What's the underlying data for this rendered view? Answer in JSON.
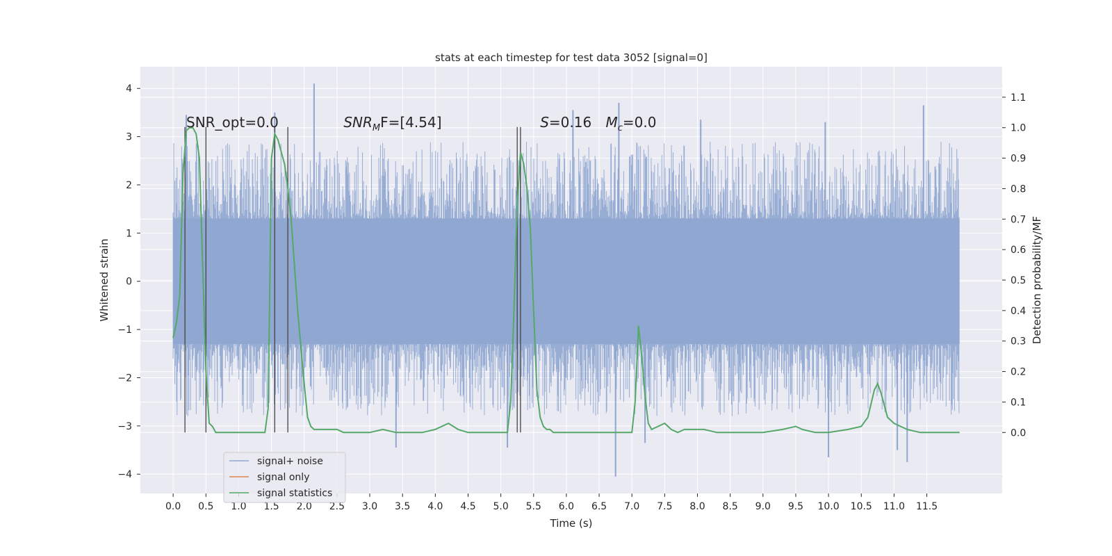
{
  "chart_data": {
    "type": "line",
    "title": "stats at each timestep for test data 3052 [signal=0]",
    "xlabel": "Time (s)",
    "ylabel": "Whitened strain",
    "ylabel_right": "Detection probability/MF",
    "xlim": [
      -0.5,
      12.65
    ],
    "ylim": [
      -4.4,
      4.45
    ],
    "ylim_right": [
      -0.2,
      1.2
    ],
    "x_ticks": [
      "0.0",
      "0.5",
      "1.0",
      "1.5",
      "2.0",
      "2.5",
      "3.0",
      "3.5",
      "4.0",
      "4.5",
      "5.0",
      "5.5",
      "6.0",
      "6.5",
      "7.0",
      "7.5",
      "8.0",
      "8.5",
      "9.0",
      "9.5",
      "10.0",
      "10.5",
      "11.0",
      "11.5"
    ],
    "y_ticks": [
      "4",
      "3",
      "2",
      "1",
      "0",
      "−1",
      "−2",
      "−3",
      "−4"
    ],
    "y_ticks_right": [
      "1.1",
      "1.0",
      "0.9",
      "0.8",
      "0.7",
      "0.6",
      "0.5",
      "0.4",
      "0.3",
      "0.2",
      "0.1",
      "0.0"
    ],
    "grid": true,
    "legend_position": "lower-left",
    "annotations": [
      {
        "text": "SNR_opt=0.0",
        "x": 0.2,
        "y": 3.3
      },
      {
        "text": "SNR",
        "sub": "M",
        "after": "F=[4.54]",
        "x": 2.6,
        "y": 3.3
      },
      {
        "text": "S",
        "after": "=0.16",
        "x": 5.6,
        "y": 3.3
      },
      {
        "text": "M",
        "sub": "c",
        "after": "=0.0",
        "x": 6.6,
        "y": 3.3
      }
    ],
    "series": [
      {
        "name": "signal+ noise",
        "color": "#8fa6d0",
        "kind": "noise",
        "t_start": 0.0,
        "t_end": 12.0,
        "band_low": -1.3,
        "band_high": 1.3,
        "outlier_high_peaks": [
          [
            2.15,
            4.1
          ],
          [
            6.8,
            3.7
          ],
          [
            11.45,
            3.65
          ],
          [
            6.1,
            3.55
          ],
          [
            1.55,
            3.5
          ],
          [
            0.2,
            3.45
          ],
          [
            8.05,
            3.35
          ],
          [
            9.95,
            3.3
          ]
        ],
        "outlier_low_peaks": [
          [
            6.75,
            -4.05
          ],
          [
            11.2,
            -3.75
          ],
          [
            10.0,
            -3.65
          ],
          [
            11.05,
            -3.5
          ],
          [
            3.4,
            -3.45
          ],
          [
            5.1,
            -3.45
          ],
          [
            7.2,
            -3.35
          ]
        ]
      },
      {
        "name": "signal only",
        "color": "#dd8452",
        "x": [],
        "y": []
      },
      {
        "name": "signal statistics",
        "color": "#55a868",
        "axis": "right",
        "x": [
          0.0,
          0.05,
          0.1,
          0.15,
          0.2,
          0.25,
          0.3,
          0.35,
          0.4,
          0.45,
          0.5,
          0.55,
          0.6,
          0.65,
          0.7,
          0.8,
          1.0,
          1.2,
          1.4,
          1.45,
          1.5,
          1.55,
          1.6,
          1.65,
          1.7,
          1.75,
          1.8,
          1.85,
          1.9,
          1.95,
          2.0,
          2.05,
          2.1,
          2.15,
          2.2,
          2.25,
          2.3,
          2.4,
          2.5,
          2.6,
          2.7,
          2.8,
          3.0,
          3.2,
          3.4,
          3.6,
          3.8,
          4.0,
          4.2,
          4.35,
          4.5,
          4.7,
          4.9,
          5.1,
          5.15,
          5.2,
          5.25,
          5.3,
          5.35,
          5.4,
          5.45,
          5.5,
          5.55,
          5.6,
          5.65,
          5.7,
          5.75,
          5.8,
          5.9,
          6.0,
          6.5,
          7.0,
          7.05,
          7.1,
          7.15,
          7.2,
          7.25,
          7.3,
          7.4,
          7.5,
          7.6,
          7.7,
          7.8,
          7.9,
          8.1,
          8.3,
          8.5,
          9.0,
          9.3,
          9.5,
          9.6,
          9.8,
          10.0,
          10.3,
          10.5,
          10.6,
          10.7,
          10.75,
          10.8,
          10.9,
          11.0,
          11.2,
          11.4,
          11.6,
          11.8,
          12.0
        ],
        "y": [
          0.31,
          0.36,
          0.45,
          0.85,
          0.99,
          1.0,
          1.0,
          0.98,
          0.9,
          0.55,
          0.2,
          0.03,
          0.02,
          0.0,
          0.0,
          0.0,
          0.0,
          0.0,
          0.0,
          0.08,
          0.9,
          0.98,
          0.96,
          0.92,
          0.88,
          0.8,
          0.7,
          0.55,
          0.4,
          0.28,
          0.16,
          0.05,
          0.02,
          0.01,
          0.01,
          0.01,
          0.01,
          0.01,
          0.01,
          0.0,
          0.0,
          0.0,
          0.0,
          0.01,
          0.0,
          0.0,
          0.0,
          0.01,
          0.03,
          0.01,
          0.0,
          0.0,
          0.0,
          0.0,
          0.1,
          0.4,
          0.75,
          0.92,
          0.88,
          0.8,
          0.67,
          0.4,
          0.14,
          0.05,
          0.02,
          0.01,
          0.01,
          0.0,
          0.0,
          0.0,
          0.0,
          0.0,
          0.1,
          0.35,
          0.25,
          0.12,
          0.03,
          0.01,
          0.02,
          0.03,
          0.01,
          0.0,
          0.01,
          0.01,
          0.01,
          0.0,
          0.0,
          0.0,
          0.01,
          0.02,
          0.01,
          0.0,
          0.0,
          0.01,
          0.02,
          0.05,
          0.14,
          0.16,
          0.13,
          0.05,
          0.03,
          0.01,
          0.0,
          0.0,
          0.0,
          0.0
        ]
      }
    ],
    "vertical_markers": [
      0.18,
      0.5,
      1.55,
      1.75,
      5.25,
      5.3
    ]
  }
}
